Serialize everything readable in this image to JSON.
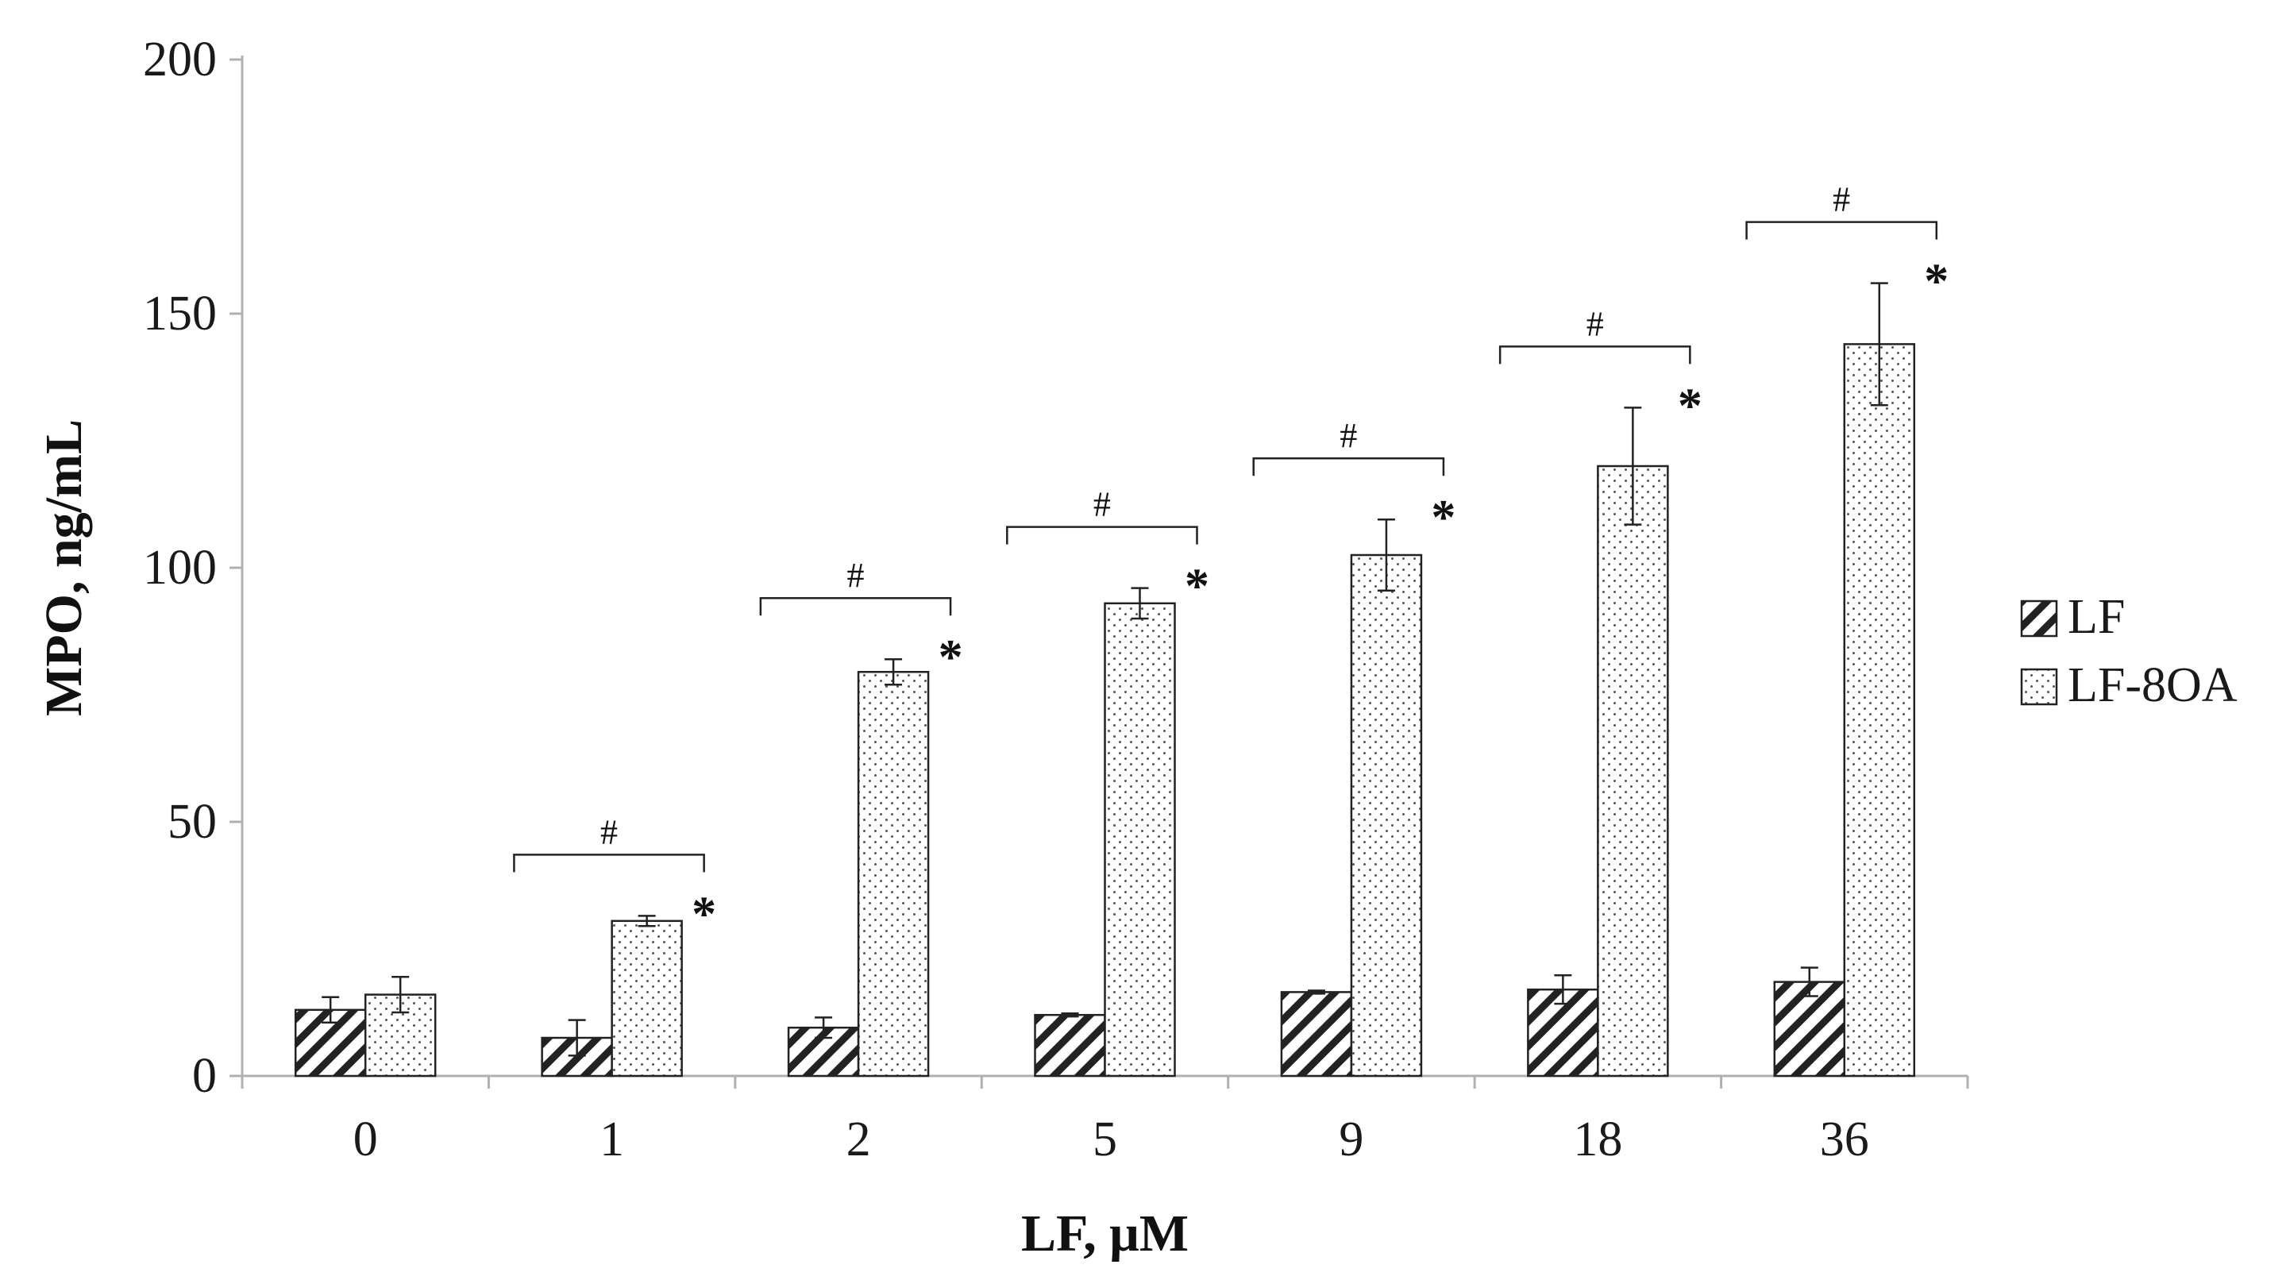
{
  "colors": {
    "axis": "#b0b0b0",
    "bar_stroke": "#222222",
    "hatch": "#222222",
    "dots": "#555555",
    "text": "#1a1a1a"
  },
  "chart_data": {
    "type": "bar",
    "xlabel": "LF, μM",
    "ylabel": "MPO, ng/mL",
    "ylim": [
      0,
      200
    ],
    "yticks": [
      0,
      50,
      100,
      150,
      200
    ],
    "grid": false,
    "legend_position": "right",
    "categories": [
      "0",
      "1",
      "2",
      "5",
      "9",
      "18",
      "36"
    ],
    "series": [
      {
        "name": "LF",
        "pattern": "hatch",
        "values": [
          13,
          7.5,
          9.5,
          12,
          16.5,
          17,
          18.5
        ],
        "errors": [
          2.5,
          3.5,
          2,
          0.3,
          0.3,
          2.8,
          2.8
        ]
      },
      {
        "name": "LF-8OA",
        "pattern": "dots",
        "values": [
          16,
          30.5,
          79.5,
          93,
          102.5,
          120,
          144
        ],
        "errors": [
          3.5,
          1,
          2.5,
          3,
          7,
          11.5,
          12
        ]
      }
    ],
    "annotations": {
      "star": "*",
      "hash": "#",
      "marked_categories": [
        "1",
        "2",
        "5",
        "9",
        "18",
        "36"
      ]
    }
  }
}
